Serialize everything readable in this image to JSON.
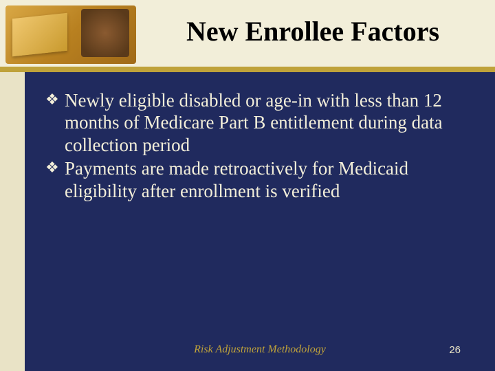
{
  "slide": {
    "title": "New Enrollee Factors",
    "bullets": [
      "Newly eligible disabled or age-in with less than 12 months of Medicare Part B entitlement during data collection period",
      "Payments are made retroactively for Medicaid eligibility after enrollment is verified"
    ],
    "footer": "Risk Adjustment Methodology",
    "page_number": "26"
  },
  "style": {
    "title_fontsize": 40,
    "title_color": "#000000",
    "body_fontsize": 27,
    "body_color": "#f2eed9",
    "bullet_marker": "❖",
    "bullet_marker_color": "#f2eed9",
    "footer_color": "#bfa23a",
    "page_number_color": "#e9e3c6",
    "top_bg": "#f2eed9",
    "main_bg": "#202a5e",
    "accent_bar_color": "#bfa23a",
    "sidebar_color": "#e9e3c6"
  }
}
